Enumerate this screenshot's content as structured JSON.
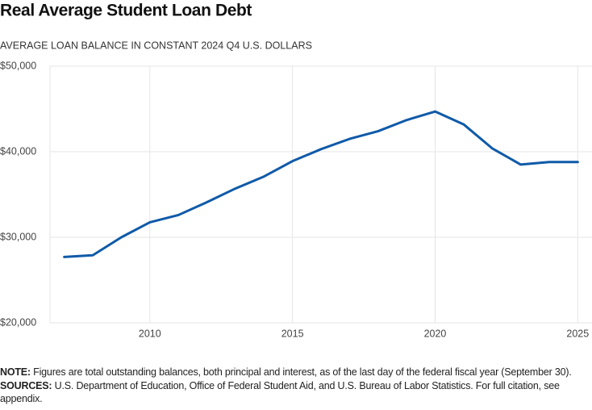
{
  "chart_data": {
    "type": "line",
    "title": "Real Average Student Loan Debt",
    "subtitle": "AVERAGE LOAN BALANCE IN CONSTANT 2024 Q4 U.S. DOLLARS",
    "x": [
      2007,
      2008,
      2009,
      2010,
      2011,
      2012,
      2013,
      2014,
      2015,
      2016,
      2017,
      2018,
      2019,
      2020,
      2021,
      2022,
      2023,
      2024,
      2025
    ],
    "series": [
      {
        "color": "#0f5aa8",
        "values": [
          27700,
          27900,
          30000,
          31750,
          32600,
          34100,
          35700,
          37100,
          38900,
          40300,
          41500,
          42400,
          43700,
          44700,
          43200,
          40400,
          38500,
          38800,
          38800
        ]
      }
    ],
    "xlim": [
      2006.5,
      2025.5
    ],
    "xticks": [
      2010,
      2015,
      2020,
      2025
    ],
    "ylim": [
      20000,
      50000
    ],
    "yticks": [
      {
        "value": 20000,
        "label": "$20,000"
      },
      {
        "value": 30000,
        "label": "$30,000"
      },
      {
        "value": 40000,
        "label": "$40,000"
      },
      {
        "value": 50000,
        "label": "$50,000"
      }
    ],
    "grid": true
  },
  "notes": {
    "note_label": "NOTE:",
    "note": "Figures are total outstanding balances, both principal and interest, as of the last day of the federal fiscal year (September 30).",
    "sources_label": "SOURCES:",
    "sources": "U.S. Department of Education, Office of Federal Student Aid, and U.S. Bureau of Labor Statistics. For full citation, see appendix."
  }
}
